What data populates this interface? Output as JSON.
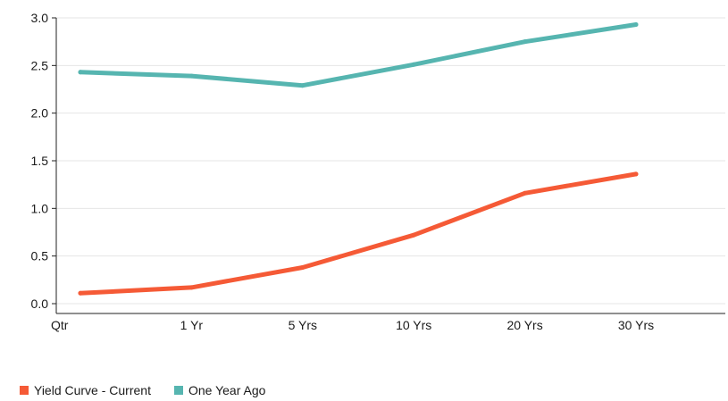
{
  "chart_data": {
    "type": "line",
    "categories": [
      "Qtr",
      "1 Yr",
      "5 Yrs",
      "10 Yrs",
      "20 Yrs",
      "30 Yrs"
    ],
    "yticks": [
      "0.0",
      "0.5",
      "1.0",
      "1.5",
      "2.0",
      "2.5",
      "3.0"
    ],
    "ylim": [
      0,
      3.0
    ],
    "grid": true,
    "legend_position": "bottom-left",
    "series": [
      {
        "name": "Yield Curve - Current",
        "color": "#f55a36",
        "values": [
          0.11,
          0.17,
          0.38,
          0.72,
          1.16,
          1.36
        ]
      },
      {
        "name": "One Year Ago",
        "color": "#56b5b0",
        "values": [
          2.43,
          2.39,
          2.29,
          2.51,
          2.75,
          2.93
        ]
      }
    ]
  }
}
